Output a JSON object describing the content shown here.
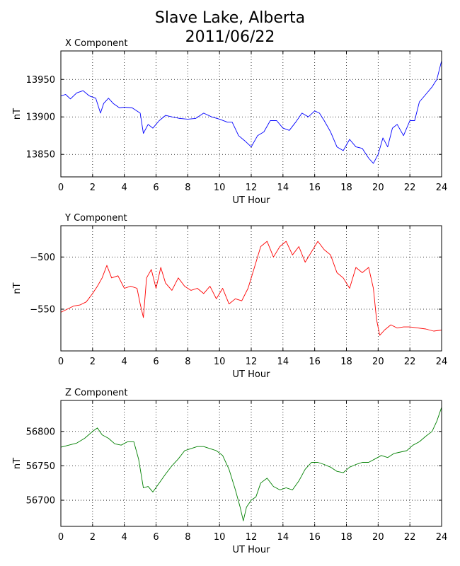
{
  "title": {
    "line1": "Slave Lake, Alberta",
    "line2": "2011/06/22"
  },
  "chart_data": [
    {
      "type": "line",
      "title": "X Component",
      "xlabel": "UT Hour",
      "ylabel": "nT",
      "color": "#0000ff",
      "xlim": [
        0,
        24
      ],
      "ylim": [
        13820,
        13988
      ],
      "xticks": [
        0,
        2,
        4,
        6,
        8,
        10,
        12,
        14,
        16,
        18,
        20,
        22,
        24
      ],
      "yticks": [
        13850,
        13900,
        13950
      ],
      "ytick_labels": [
        "13850",
        "13900",
        "13950"
      ],
      "grid": true,
      "series": [
        {
          "x": [
            0,
            0.3,
            0.6,
            1,
            1.4,
            1.8,
            2.2,
            2.5,
            2.7,
            3.0,
            3.3,
            3.7,
            4.0,
            4.5,
            5.0,
            5.2,
            5.5,
            5.8,
            6.2,
            6.6,
            7.0,
            7.5,
            8.0,
            8.5,
            9.0,
            9.5,
            10.0,
            10.5,
            10.8,
            11.2,
            11.6,
            12.0,
            12.4,
            12.8,
            13.2,
            13.6,
            14.0,
            14.4,
            14.8,
            15.2,
            15.6,
            16.0,
            16.3,
            16.6,
            17.0,
            17.4,
            17.8,
            18.2,
            18.6,
            19.0,
            19.4,
            19.7,
            20.0,
            20.3,
            20.6,
            20.9,
            21.2,
            21.6,
            22.0,
            22.3,
            22.6,
            23.0,
            23.4,
            23.7,
            24.0
          ],
          "y": [
            13928,
            13930,
            13924,
            13932,
            13935,
            13928,
            13925,
            13905,
            13918,
            13925,
            13918,
            13912,
            13913,
            13912,
            13905,
            13878,
            13890,
            13885,
            13895,
            13902,
            13900,
            13898,
            13897,
            13898,
            13905,
            13900,
            13897,
            13893,
            13893,
            13875,
            13868,
            13860,
            13875,
            13880,
            13895,
            13895,
            13885,
            13882,
            13893,
            13905,
            13900,
            13908,
            13905,
            13895,
            13880,
            13860,
            13855,
            13870,
            13860,
            13858,
            13845,
            13838,
            13850,
            13872,
            13860,
            13885,
            13890,
            13875,
            13895,
            13895,
            13920,
            13930,
            13940,
            13950,
            13975
          ]
        }
      ]
    },
    {
      "type": "line",
      "title": "Y Component",
      "xlabel": "UT Hour",
      "ylabel": "nT",
      "color": "#ff0000",
      "xlim": [
        0,
        24
      ],
      "ylim": [
        -590,
        -470
      ],
      "xticks": [
        0,
        2,
        4,
        6,
        8,
        10,
        12,
        14,
        16,
        18,
        20,
        22,
        24
      ],
      "yticks": [
        -550,
        -500
      ],
      "ytick_labels": [
        "−550",
        "−500"
      ],
      "grid": true,
      "series": [
        {
          "x": [
            0,
            0.4,
            0.8,
            1.2,
            1.6,
            2.0,
            2.3,
            2.6,
            2.9,
            3.2,
            3.6,
            4.0,
            4.4,
            4.8,
            5.0,
            5.2,
            5.4,
            5.7,
            6.0,
            6.3,
            6.6,
            7.0,
            7.4,
            7.8,
            8.2,
            8.6,
            9.0,
            9.4,
            9.8,
            10.2,
            10.6,
            11.0,
            11.4,
            11.8,
            12.2,
            12.6,
            13.0,
            13.4,
            13.8,
            14.2,
            14.6,
            15.0,
            15.4,
            15.8,
            16.2,
            16.6,
            17.0,
            17.4,
            17.8,
            18.2,
            18.6,
            19.0,
            19.4,
            19.7,
            19.9,
            20.1,
            20.4,
            20.8,
            21.2,
            21.6,
            22.0,
            22.5,
            23.0,
            23.5,
            24.0
          ],
          "y": [
            -553,
            -550,
            -547,
            -546,
            -543,
            -535,
            -528,
            -520,
            -508,
            -520,
            -518,
            -530,
            -528,
            -530,
            -545,
            -558,
            -520,
            -512,
            -530,
            -510,
            -525,
            -532,
            -520,
            -528,
            -532,
            -530,
            -535,
            -528,
            -540,
            -530,
            -545,
            -540,
            -542,
            -530,
            -510,
            -490,
            -485,
            -500,
            -490,
            -485,
            -498,
            -490,
            -505,
            -495,
            -485,
            -493,
            -498,
            -515,
            -520,
            -530,
            -510,
            -515,
            -510,
            -530,
            -560,
            -575,
            -570,
            -565,
            -568,
            -567,
            -567,
            -568,
            -569,
            -571,
            -570
          ]
        }
      ]
    },
    {
      "type": "line",
      "title": "Z Component",
      "xlabel": "UT Hour",
      "ylabel": "nT",
      "color": "#008000",
      "xlim": [
        0,
        24
      ],
      "ylim": [
        56662,
        56845
      ],
      "xticks": [
        0,
        2,
        4,
        6,
        8,
        10,
        12,
        14,
        16,
        18,
        20,
        22,
        24
      ],
      "yticks": [
        56700,
        56750,
        56800
      ],
      "ytick_labels": [
        "56700",
        "56750",
        "56800"
      ],
      "grid": true,
      "series": [
        {
          "x": [
            0,
            0.5,
            1.0,
            1.5,
            2.0,
            2.3,
            2.6,
            3.0,
            3.4,
            3.8,
            4.2,
            4.6,
            4.9,
            5.2,
            5.5,
            5.8,
            6.2,
            6.6,
            7.0,
            7.4,
            7.8,
            8.2,
            8.6,
            9.0,
            9.4,
            9.8,
            10.2,
            10.6,
            11.0,
            11.3,
            11.5,
            11.7,
            12.0,
            12.3,
            12.6,
            13.0,
            13.4,
            13.8,
            14.2,
            14.6,
            15.0,
            15.4,
            15.8,
            16.2,
            16.6,
            17.0,
            17.4,
            17.8,
            18.2,
            18.6,
            19.0,
            19.4,
            19.8,
            20.2,
            20.6,
            21.0,
            21.4,
            21.8,
            22.2,
            22.6,
            23.0,
            23.4,
            23.7,
            24.0
          ],
          "y": [
            56777,
            56780,
            56783,
            56790,
            56800,
            56805,
            56795,
            56790,
            56782,
            56780,
            56785,
            56785,
            56760,
            56718,
            56720,
            56712,
            56725,
            56738,
            56750,
            56760,
            56772,
            56775,
            56778,
            56778,
            56775,
            56772,
            56765,
            56745,
            56715,
            56690,
            56670,
            56690,
            56700,
            56705,
            56725,
            56732,
            56720,
            56715,
            56718,
            56715,
            56728,
            56745,
            56755,
            56755,
            56752,
            56748,
            56742,
            56740,
            56748,
            56752,
            56755,
            56755,
            56760,
            56765,
            56762,
            56768,
            56770,
            56772,
            56780,
            56785,
            56793,
            56800,
            56815,
            56835
          ]
        }
      ]
    }
  ]
}
